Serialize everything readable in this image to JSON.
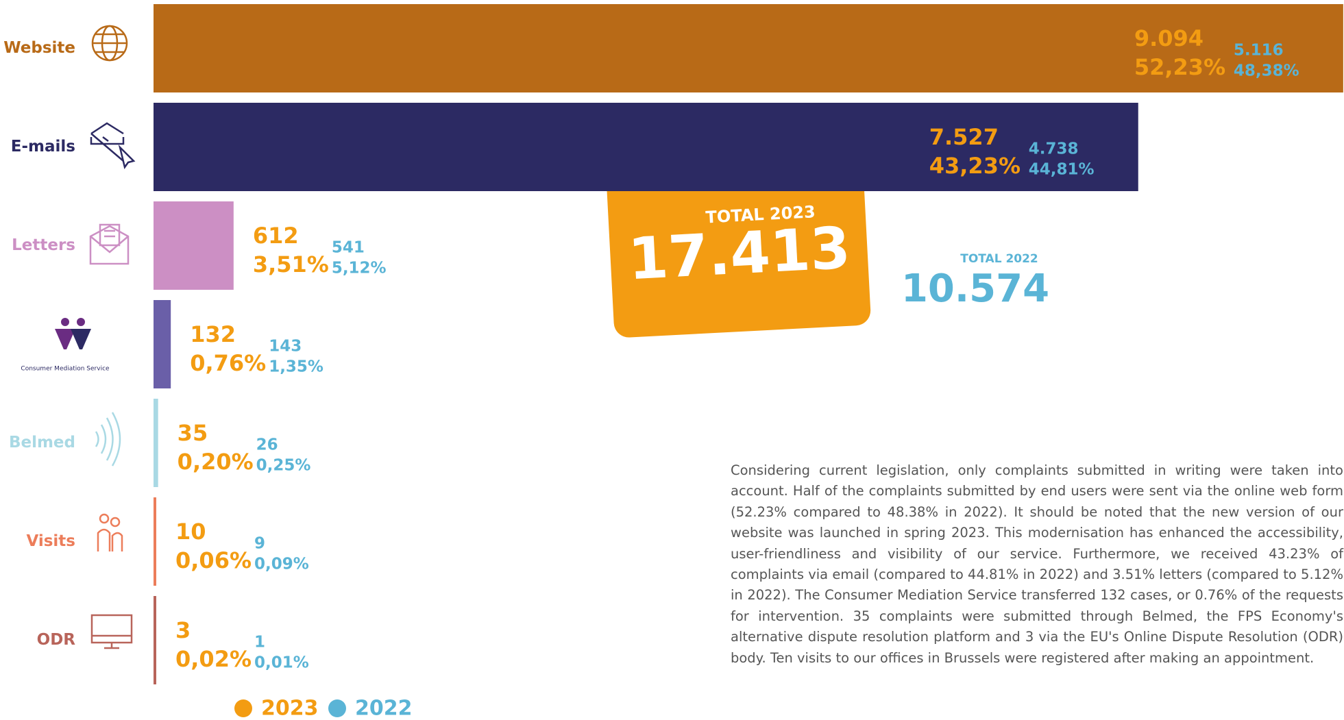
{
  "chart_data": {
    "type": "bar",
    "orientation": "horizontal",
    "categories": [
      "Website",
      "E-mails",
      "Letters",
      "Consumer Mediation Service",
      "Belmed",
      "Visits",
      "ODR"
    ],
    "bar_colors": [
      "#b86a17",
      "#2c2a63",
      "#cc8fc4",
      "#6a5fa8",
      "#a9d9e4",
      "#ec7d5a",
      "#b8645a"
    ],
    "xlim": [
      0,
      9100
    ],
    "series": [
      {
        "name": "2023",
        "color": "#f39c12",
        "values": [
          9094,
          7527,
          612,
          132,
          35,
          10,
          3
        ],
        "value_labels": [
          "9.094",
          "7.527",
          "612",
          "132",
          "35",
          "10",
          "3"
        ],
        "shares": [
          52.23,
          43.23,
          3.51,
          0.76,
          0.2,
          0.06,
          0.02
        ],
        "share_labels": [
          "52,23%",
          "43,23%",
          "3,51%",
          "0,76%",
          "0,20%",
          "0,06%",
          "0,02%"
        ]
      },
      {
        "name": "2022",
        "color": "#5ab4d6",
        "values": [
          5116,
          4738,
          541,
          143,
          26,
          9,
          1
        ],
        "value_labels": [
          "5.116",
          "4.738",
          "541",
          "143",
          "26",
          "9",
          "1"
        ],
        "shares": [
          48.38,
          44.81,
          5.12,
          1.35,
          0.25,
          0.09,
          0.01
        ],
        "share_labels": [
          "48,38%",
          "44,81%",
          "5,12%",
          "1,35%",
          "0,25%",
          "0,09%",
          "0,01%"
        ]
      }
    ],
    "totals": [
      {
        "label": "TOTAL 2023",
        "value": 17413,
        "value_label": "17.413"
      },
      {
        "label": "TOTAL 2022",
        "value": 10574,
        "value_label": "10.574"
      }
    ],
    "text": "Considering current legislation, only complaints submitted in writing were taken into account. Half of the complaints submitted by end users were sent via the online web form (52.23% compared to 48.38% in 2022). It should be noted that the new version of our website was launched in spring 2023. This modernisation has enhanced the accessibility, user-friendliness and visibility of our service. Furthermore, we received 43.23% of complaints via email (compared to 44.81% in 2022) and 3.51% letters (compared to 5.12% in 2022). The Consumer Mediation Service transferred 132 cases, or 0.76% of the requests for intervention. 35 complaints were submitted through Belmed, the FPS Economy's alternative dispute resolution platform and 3 via the EU's Online Dispute Resolution (ODR) body. Ten visits to our offices in Brussels were registered after making an appointment."
  }
}
